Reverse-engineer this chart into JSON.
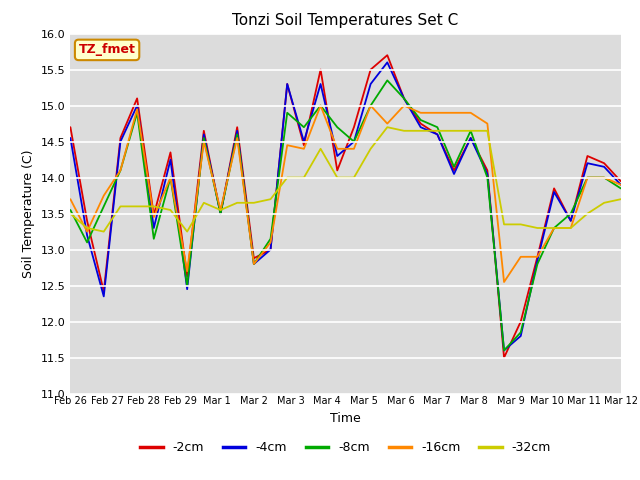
{
  "title": "Tonzi Soil Temperatures Set C",
  "xlabel": "Time",
  "ylabel": "Soil Temperature (C)",
  "ylim": [
    11.0,
    16.0
  ],
  "yticks": [
    11.0,
    11.5,
    12.0,
    12.5,
    13.0,
    13.5,
    14.0,
    14.5,
    15.0,
    15.5,
    16.0
  ],
  "annotation": "TZ_fmet",
  "bg_color": "#dcdcdc",
  "legend_labels": [
    "-2cm",
    "-4cm",
    "-8cm",
    "-16cm",
    "-32cm"
  ],
  "legend_colors": [
    "#dd0000",
    "#0000dd",
    "#00aa00",
    "#ff8800",
    "#cccc00"
  ],
  "x_tick_labels": [
    "Feb 26",
    "Feb 27",
    "Feb 28",
    "Feb 29",
    "Mar 1",
    "Mar 2",
    "Mar 3",
    "Mar 4",
    "Mar 5",
    "Mar 6",
    "Mar 7",
    "Mar 8",
    "Mar 9",
    "Mar 10",
    "Mar 11",
    "Mar 12"
  ],
  "series": {
    "-2cm": [
      14.7,
      13.4,
      12.42,
      14.55,
      15.1,
      13.48,
      14.35,
      12.63,
      14.65,
      13.5,
      14.7,
      12.88,
      13.0,
      15.3,
      14.45,
      15.5,
      14.1,
      14.7,
      15.5,
      15.7,
      15.1,
      14.75,
      14.6,
      14.1,
      14.55,
      14.1,
      11.5,
      12.0,
      12.9,
      13.85,
      13.4,
      14.3,
      14.2,
      13.95
    ],
    "-4cm": [
      14.55,
      13.2,
      12.35,
      14.5,
      15.0,
      13.3,
      14.25,
      12.45,
      14.6,
      13.5,
      14.65,
      12.8,
      13.0,
      15.3,
      14.5,
      15.3,
      14.3,
      14.5,
      15.3,
      15.6,
      15.1,
      14.7,
      14.6,
      14.05,
      14.55,
      14.05,
      11.6,
      11.8,
      12.85,
      13.8,
      13.4,
      14.2,
      14.15,
      13.9
    ],
    "-8cm": [
      13.55,
      13.1,
      13.6,
      14.1,
      14.9,
      13.15,
      14.0,
      12.5,
      14.55,
      13.5,
      14.6,
      12.8,
      13.15,
      14.9,
      14.7,
      15.0,
      14.7,
      14.5,
      15.0,
      15.35,
      15.1,
      14.8,
      14.7,
      14.15,
      14.65,
      14.0,
      11.6,
      11.85,
      12.8,
      13.3,
      13.5,
      14.0,
      14.0,
      13.85
    ],
    "-16cm": [
      13.7,
      13.25,
      13.75,
      14.1,
      14.95,
      13.45,
      14.0,
      12.7,
      14.5,
      13.55,
      14.55,
      12.8,
      13.1,
      14.45,
      14.4,
      15.0,
      14.4,
      14.4,
      15.0,
      14.75,
      15.0,
      14.9,
      14.9,
      14.9,
      14.9,
      14.75,
      12.55,
      12.9,
      12.9,
      13.3,
      13.3,
      14.0,
      14.0,
      13.9
    ],
    "-32cm": [
      13.5,
      13.3,
      13.25,
      13.6,
      13.6,
      13.6,
      13.55,
      13.25,
      13.65,
      13.55,
      13.65,
      13.65,
      13.7,
      14.0,
      14.0,
      14.4,
      14.0,
      14.0,
      14.4,
      14.7,
      14.65,
      14.65,
      14.65,
      14.65,
      14.65,
      14.65,
      13.35,
      13.35,
      13.3,
      13.3,
      13.3,
      13.5,
      13.65,
      13.7
    ]
  }
}
